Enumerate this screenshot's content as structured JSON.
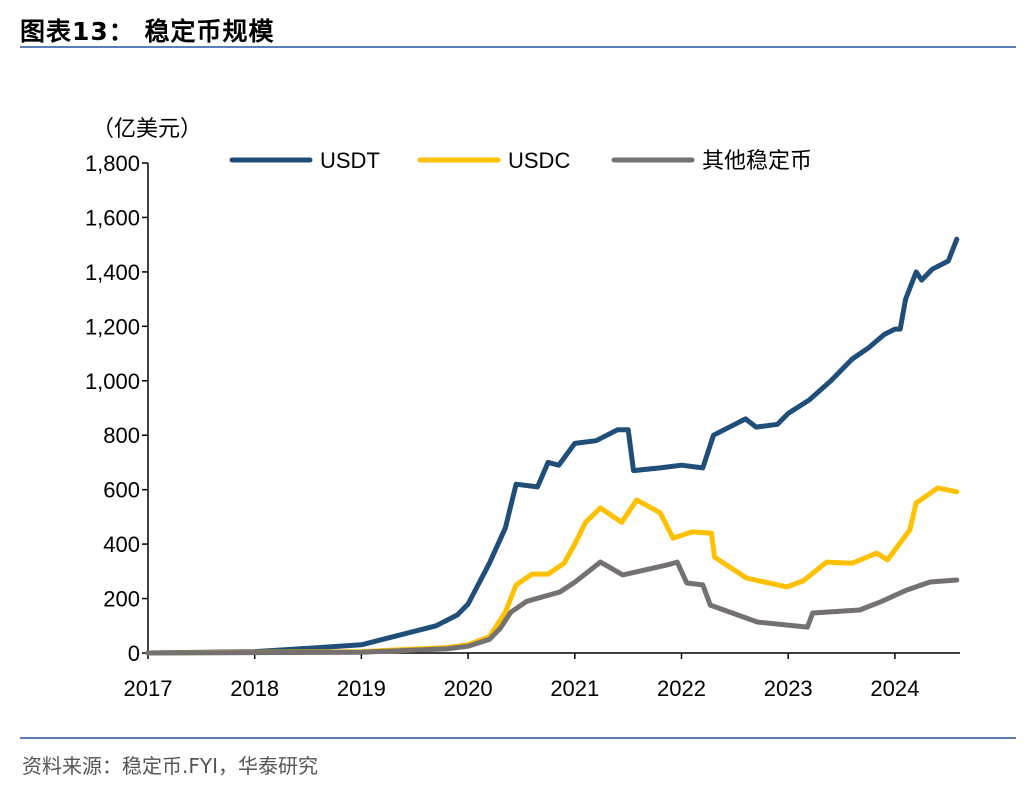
{
  "header": {
    "title": "图表13：  稳定币规模"
  },
  "footer": {
    "source": "资料来源：稳定币.FYI，华泰研究"
  },
  "chart_data": {
    "type": "line",
    "title": "",
    "xlabel": "",
    "ylabel": "（亿美元）",
    "xlim": [
      2017,
      2024.6
    ],
    "ylim": [
      0,
      1800
    ],
    "yticks": [
      "0",
      "200",
      "400",
      "600",
      "800",
      "1,000",
      "1,200",
      "1,400",
      "1,600",
      "1,800"
    ],
    "ytick_values": [
      0,
      200,
      400,
      600,
      800,
      1000,
      1200,
      1400,
      1600,
      1800
    ],
    "xticks": [
      "2017",
      "2018",
      "2019",
      "2020",
      "2021",
      "2022",
      "2023",
      "2024"
    ],
    "grid": false,
    "legend": "top",
    "series": [
      {
        "name": "USDT",
        "color": "#1F4E79",
        "x": [
          2017,
          2018,
          2018.6,
          2019,
          2019.4,
          2019.7,
          2019.9,
          2020.0,
          2020.2,
          2020.35,
          2020.45,
          2020.65,
          2020.75,
          2020.85,
          2021.0,
          2021.2,
          2021.4,
          2021.5,
          2021.55,
          2021.8,
          2022.0,
          2022.2,
          2022.3,
          2022.5,
          2022.6,
          2022.7,
          2022.9,
          2023.0,
          2023.2,
          2023.4,
          2023.6,
          2023.75,
          2023.9,
          2024.0,
          2024.05,
          2024.1,
          2024.2,
          2024.25,
          2024.35,
          2024.5,
          2024.58
        ],
        "y": [
          0,
          5,
          20,
          30,
          70,
          100,
          140,
          180,
          330,
          460,
          620,
          610,
          700,
          690,
          770,
          780,
          820,
          820,
          670,
          680,
          690,
          680,
          800,
          840,
          860,
          830,
          840,
          880,
          930,
          1000,
          1080,
          1120,
          1170,
          1190,
          1190,
          1300,
          1400,
          1370,
          1410,
          1440,
          1520
        ]
      },
      {
        "name": "USDC",
        "color": "#FFC000",
        "x": [
          2017,
          2019,
          2019.8,
          2020.0,
          2020.2,
          2020.35,
          2020.45,
          2020.6,
          2020.75,
          2020.9,
          2021.0,
          2021.1,
          2021.24,
          2021.44,
          2021.58,
          2021.8,
          2021.92,
          2022.1,
          2022.28,
          2022.31,
          2022.61,
          2022.99,
          2023.14,
          2023.36,
          2023.6,
          2023.83,
          2023.93,
          2024.14,
          2024.2,
          2024.4,
          2024.58
        ],
        "y": [
          0,
          5,
          20,
          30,
          60,
          150,
          250,
          290,
          290,
          330,
          400,
          480,
          533,
          480,
          562,
          515,
          422,
          445,
          440,
          352,
          275,
          243,
          265,
          334,
          330,
          367,
          342,
          452,
          551,
          606,
          592
        ]
      },
      {
        "name": "其他稳定币",
        "color": "#767171",
        "x": [
          2017,
          2019,
          2019.8,
          2020.0,
          2020.2,
          2020.3,
          2020.4,
          2020.55,
          2020.86,
          2021.0,
          2021.24,
          2021.45,
          2021.86,
          2021.96,
          2022.05,
          2022.2,
          2022.27,
          2022.71,
          2023.18,
          2023.23,
          2023.67,
          2023.86,
          2024.11,
          2024.33,
          2024.58
        ],
        "y": [
          0,
          3,
          15,
          25,
          50,
          90,
          150,
          190,
          224,
          260,
          334,
          287,
          323,
          334,
          257,
          250,
          176,
          114,
          95,
          147,
          158,
          187,
          231,
          261,
          268
        ]
      }
    ]
  }
}
